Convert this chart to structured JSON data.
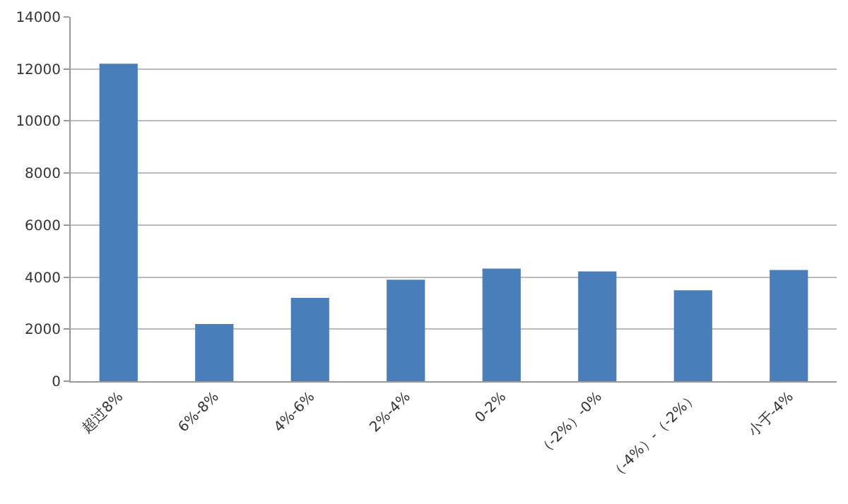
{
  "chart_data": {
    "type": "bar",
    "categories": [
      "超过8%",
      "6%-8%",
      "4%-6%",
      "2%-4%",
      "0-2%",
      "（-2%）-0%",
      "（-4%）-（-2%）",
      "小于-4%"
    ],
    "values": [
      12200,
      2200,
      3200,
      3900,
      4330,
      4220,
      3490,
      4270
    ],
    "color": "#4a7ebb",
    "ylim": [
      0,
      14000
    ],
    "yticks": [
      0,
      2000,
      4000,
      6000,
      8000,
      10000,
      12000,
      14000
    ],
    "grid": "y"
  }
}
